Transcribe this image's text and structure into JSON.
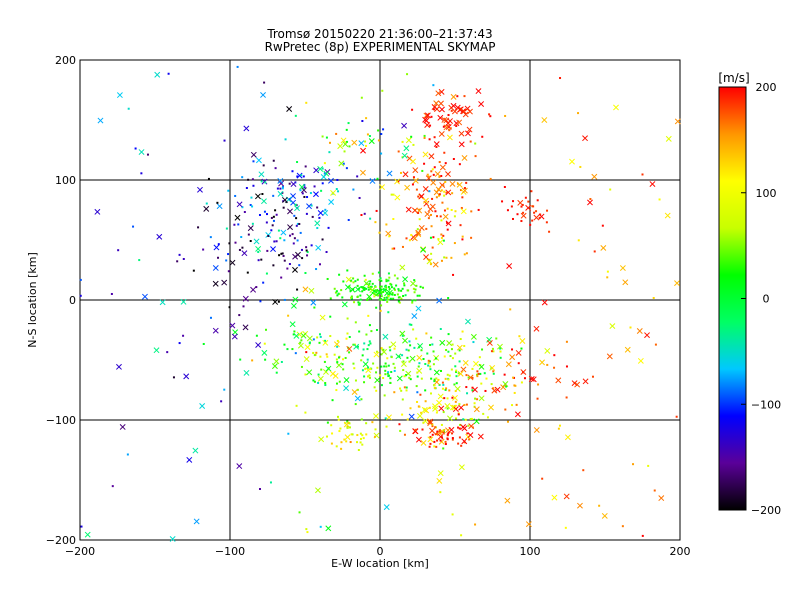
{
  "chart_data": {
    "type": "scatter",
    "title": "Tromsø 20150220 21:36:00–21:37:43",
    "subtitle": "RwPretec (8p) EXPERIMENTAL SKYMAP",
    "xlabel": "E-W location [km]",
    "ylabel": "N-S location [km]",
    "xlim": [
      -200,
      200
    ],
    "ylim": [
      -200,
      200
    ],
    "xticks": [
      -200,
      -100,
      0,
      100,
      200
    ],
    "yticks": [
      -200,
      -100,
      0,
      100,
      200
    ],
    "x_tick_labels": [
      "−200",
      "−100",
      "0",
      "100",
      "200"
    ],
    "y_tick_labels": [
      "−200",
      "−100",
      "0",
      "100",
      "200"
    ],
    "grid": true,
    "marker_types": [
      "dot",
      "cross"
    ],
    "colorbar": {
      "label": "[m/s]",
      "range": [
        -200,
        200
      ],
      "ticks": [
        200,
        100,
        0,
        -100,
        -200
      ],
      "tick_labels": [
        "200",
        "100",
        "0",
        "−100",
        "−200"
      ],
      "colormap": [
        "#000000",
        "#5a0099",
        "#0000ff",
        "#00c8ff",
        "#00ff64",
        "#00ff00",
        "#c8ff00",
        "#ffff00",
        "#ff9600",
        "#ff0000"
      ]
    },
    "clusters": [
      {
        "x": 0,
        "y": 8,
        "sx": 14,
        "sy": 6,
        "n": 170,
        "v": 25,
        "dv": 20,
        "cross": 0.05
      },
      {
        "x": 12,
        "y": -52,
        "sx": 35,
        "sy": 14,
        "n": 220,
        "v": 35,
        "dv": 45,
        "cross": 0.15
      },
      {
        "x": 45,
        "y": -88,
        "sx": 18,
        "sy": 18,
        "n": 110,
        "v": 110,
        "dv": 50,
        "cross": 0.3
      },
      {
        "x": 45,
        "y": -112,
        "sx": 10,
        "sy": 6,
        "n": 50,
        "v": 190,
        "dv": 15,
        "cross": 0.2
      },
      {
        "x": -20,
        "y": -110,
        "sx": 10,
        "sy": 7,
        "n": 45,
        "v": 90,
        "dv": 30,
        "cross": 0.15
      },
      {
        "x": -70,
        "y": 60,
        "sx": 22,
        "sy": 25,
        "n": 120,
        "v": -130,
        "dv": 50,
        "cross": 0.2
      },
      {
        "x": -40,
        "y": 95,
        "sx": 15,
        "sy": 10,
        "n": 40,
        "v": -60,
        "dv": 40,
        "cross": 0.3
      },
      {
        "x": 38,
        "y": 90,
        "sx": 15,
        "sy": 20,
        "n": 110,
        "v": 170,
        "dv": 40,
        "cross": 0.45
      },
      {
        "x": 45,
        "y": 152,
        "sx": 12,
        "sy": 12,
        "n": 60,
        "v": 190,
        "dv": 15,
        "cross": 0.7
      },
      {
        "x": 30,
        "y": 55,
        "sx": 15,
        "sy": 15,
        "n": 45,
        "v": 140,
        "dv": 40,
        "cross": 0.3
      },
      {
        "x": 100,
        "y": 75,
        "sx": 8,
        "sy": 8,
        "n": 30,
        "v": 190,
        "dv": 10,
        "cross": 0.1
      },
      {
        "x": 90,
        "y": -70,
        "sx": 22,
        "sy": 14,
        "n": 50,
        "v": 180,
        "dv": 30,
        "cross": 0.45
      },
      {
        "x": -40,
        "y": -40,
        "sx": 25,
        "sy": 18,
        "n": 70,
        "v": 40,
        "dv": 70,
        "cross": 0.3
      },
      {
        "x": -10,
        "y": 130,
        "sx": 20,
        "sy": 15,
        "n": 40,
        "v": 30,
        "dv": 80,
        "cross": 0.3
      },
      {
        "x": -90,
        "y": 30,
        "sx": 25,
        "sy": 35,
        "n": 45,
        "v": -180,
        "dv": 30,
        "cross": 0.3
      }
    ],
    "scatter_points": {
      "n": 200,
      "cross": 0.5,
      "xlim": [
        -200,
        200
      ],
      "ylim": [
        -200,
        200
      ]
    }
  }
}
